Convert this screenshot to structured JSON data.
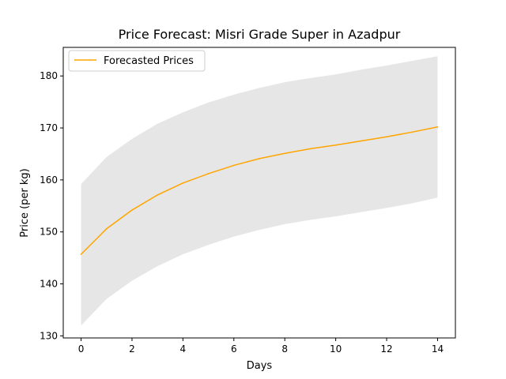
{
  "chart_data": {
    "type": "line",
    "title": "Price Forecast: Misri Grade Super in Azadpur",
    "xlabel": "Days",
    "ylabel": "Price (per kg)",
    "xlim": [
      -0.7,
      14.7
    ],
    "ylim": [
      129.6,
      185.5
    ],
    "xticks": [
      0,
      2,
      4,
      6,
      8,
      10,
      12,
      14
    ],
    "yticks": [
      130,
      140,
      150,
      160,
      170,
      180
    ],
    "grid": false,
    "legend": {
      "placement": "top-left"
    },
    "x": [
      0,
      1,
      2,
      3,
      4,
      5,
      6,
      7,
      8,
      9,
      10,
      11,
      12,
      13,
      14
    ],
    "series": [
      {
        "name": "Forecasted Prices",
        "color": "#ffa500",
        "values": [
          145.7,
          150.6,
          154.2,
          157.1,
          159.4,
          161.2,
          162.8,
          164.1,
          165.1,
          166.0,
          166.7,
          167.5,
          168.3,
          169.2,
          170.2
        ]
      }
    ],
    "band": {
      "color": "#e6e6e6",
      "lower": [
        132.0,
        137.1,
        140.6,
        143.4,
        145.7,
        147.5,
        149.1,
        150.4,
        151.5,
        152.3,
        153.0,
        153.8,
        154.6,
        155.5,
        156.6
      ],
      "upper": [
        159.2,
        164.4,
        167.9,
        170.8,
        173.0,
        174.9,
        176.4,
        177.7,
        178.8,
        179.6,
        180.3,
        181.2,
        182.0,
        182.9,
        183.8
      ]
    }
  }
}
